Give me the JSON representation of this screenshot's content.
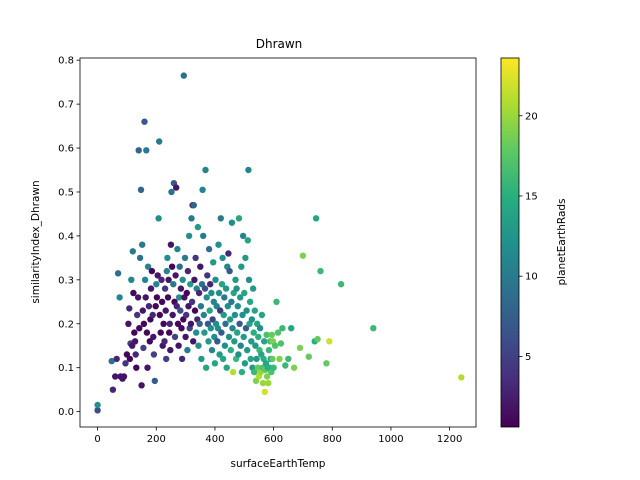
{
  "chart_data": {
    "type": "scatter",
    "title": "Dhrawn",
    "xlabel": "surfaceEarthTemp",
    "ylabel": "similarityIndex_Dhrawn",
    "xlim": [
      -60,
      1290
    ],
    "ylim": [
      -0.035,
      0.805
    ],
    "xticks": [
      "0",
      "200",
      "400",
      "600",
      "800",
      "1000",
      "1200"
    ],
    "yticks": [
      "0.0",
      "0.1",
      "0.2",
      "0.3",
      "0.4",
      "0.5",
      "0.6",
      "0.7",
      "0.8"
    ],
    "colorbar": {
      "label": "planetEarthRads",
      "range": [
        0.6,
        23.6
      ],
      "ticks": [
        "5",
        "10",
        "15",
        "20"
      ],
      "colormap": "viridis"
    },
    "points": [
      [
        0,
        0.003,
        6
      ],
      [
        0,
        0.015,
        12
      ],
      [
        48,
        0.115,
        9
      ],
      [
        52,
        0.05,
        3
      ],
      [
        60,
        0.08,
        2
      ],
      [
        65,
        0.12,
        3
      ],
      [
        70,
        0.315,
        9
      ],
      [
        75,
        0.26,
        11
      ],
      [
        78,
        0.08,
        2
      ],
      [
        85,
        0.075,
        2
      ],
      [
        90,
        0.08,
        2
      ],
      [
        95,
        0.11,
        4
      ],
      [
        100,
        0.13,
        1
      ],
      [
        105,
        0.2,
        2
      ],
      [
        108,
        0.235,
        3
      ],
      [
        110,
        0.12,
        1
      ],
      [
        112,
        0.155,
        5
      ],
      [
        115,
        0.3,
        11
      ],
      [
        118,
        0.15,
        2
      ],
      [
        120,
        0.365,
        10
      ],
      [
        122,
        0.27,
        1
      ],
      [
        125,
        0.18,
        1
      ],
      [
        128,
        0.16,
        2
      ],
      [
        130,
        0.13,
        3
      ],
      [
        132,
        0.1,
        1
      ],
      [
        135,
        0.22,
        4
      ],
      [
        138,
        0.26,
        2
      ],
      [
        140,
        0.595,
        8
      ],
      [
        142,
        0.19,
        1
      ],
      [
        145,
        0.35,
        9
      ],
      [
        148,
        0.505,
        8
      ],
      [
        150,
        0.06,
        2
      ],
      [
        152,
        0.38,
        10
      ],
      [
        154,
        0.23,
        2
      ],
      [
        156,
        0.145,
        5
      ],
      [
        158,
        0.2,
        1
      ],
      [
        160,
        0.66,
        7
      ],
      [
        162,
        0.3,
        11
      ],
      [
        164,
        0.26,
        2
      ],
      [
        166,
        0.595,
        10
      ],
      [
        168,
        0.18,
        1
      ],
      [
        170,
        0.1,
        2
      ],
      [
        172,
        0.33,
        11
      ],
      [
        175,
        0.24,
        3
      ],
      [
        178,
        0.16,
        1
      ],
      [
        180,
        0.21,
        1
      ],
      [
        182,
        0.28,
        2
      ],
      [
        185,
        0.32,
        1
      ],
      [
        188,
        0.22,
        3
      ],
      [
        190,
        0.17,
        2
      ],
      [
        192,
        0.13,
        5
      ],
      [
        195,
        0.07,
        7
      ],
      [
        198,
        0.24,
        1
      ],
      [
        200,
        0.29,
        11
      ],
      [
        202,
        0.26,
        1
      ],
      [
        205,
        0.31,
        2
      ],
      [
        208,
        0.44,
        12
      ],
      [
        210,
        0.615,
        10
      ],
      [
        212,
        0.22,
        1
      ],
      [
        215,
        0.18,
        1
      ],
      [
        218,
        0.3,
        3
      ],
      [
        220,
        0.25,
        1
      ],
      [
        222,
        0.15,
        2
      ],
      [
        225,
        0.2,
        1
      ],
      [
        228,
        0.16,
        3
      ],
      [
        230,
        0.28,
        4
      ],
      [
        232,
        0.23,
        2
      ],
      [
        234,
        0.12,
        5
      ],
      [
        236,
        0.32,
        11
      ],
      [
        238,
        0.35,
        12
      ],
      [
        240,
        0.26,
        1
      ],
      [
        242,
        0.3,
        2
      ],
      [
        244,
        0.18,
        1
      ],
      [
        246,
        0.2,
        3
      ],
      [
        248,
        0.14,
        2
      ],
      [
        250,
        0.38,
        2
      ],
      [
        252,
        0.5,
        9
      ],
      [
        254,
        0.33,
        1
      ],
      [
        256,
        0.22,
        2
      ],
      [
        258,
        0.29,
        10
      ],
      [
        260,
        0.52,
        7
      ],
      [
        262,
        0.25,
        1
      ],
      [
        264,
        0.17,
        5
      ],
      [
        266,
        0.31,
        2
      ],
      [
        268,
        0.51,
        2
      ],
      [
        270,
        0.24,
        3
      ],
      [
        272,
        0.37,
        11
      ],
      [
        274,
        0.2,
        1
      ],
      [
        276,
        0.15,
        2
      ],
      [
        278,
        0.26,
        12
      ],
      [
        280,
        0.33,
        9
      ],
      [
        282,
        0.23,
        6
      ],
      [
        284,
        0.28,
        2
      ],
      [
        286,
        0.19,
        1
      ],
      [
        288,
        0.12,
        3
      ],
      [
        290,
        0.3,
        12
      ],
      [
        292,
        0.21,
        1
      ],
      [
        294,
        0.765,
        9
      ],
      [
        296,
        0.26,
        2
      ],
      [
        298,
        0.35,
        10
      ],
      [
        300,
        0.17,
        2
      ],
      [
        302,
        0.22,
        4
      ],
      [
        304,
        0.27,
        1
      ],
      [
        306,
        0.14,
        10
      ],
      [
        308,
        0.32,
        3
      ],
      [
        310,
        0.24,
        2
      ],
      [
        312,
        0.4,
        12
      ],
      [
        314,
        0.19,
        5
      ],
      [
        316,
        0.29,
        13
      ],
      [
        318,
        0.2,
        2
      ],
      [
        320,
        0.44,
        10
      ],
      [
        322,
        0.25,
        4
      ],
      [
        324,
        0.47,
        3
      ],
      [
        326,
        0.16,
        2
      ],
      [
        328,
        0.47,
        8
      ],
      [
        330,
        0.3,
        2
      ],
      [
        332,
        0.23,
        1
      ],
      [
        334,
        0.35,
        4
      ],
      [
        336,
        0.18,
        12
      ],
      [
        338,
        0.28,
        11
      ],
      [
        340,
        0.21,
        3
      ],
      [
        342,
        0.42,
        13
      ],
      [
        344,
        0.15,
        12
      ],
      [
        346,
        0.27,
        3
      ],
      [
        348,
        0.2,
        8
      ],
      [
        350,
        0.33,
        2
      ],
      [
        352,
        0.24,
        10
      ],
      [
        354,
        0.12,
        13
      ],
      [
        356,
        0.29,
        9
      ],
      [
        358,
        0.505,
        11
      ],
      [
        360,
        0.4,
        10
      ],
      [
        362,
        0.22,
        11
      ],
      [
        364,
        0.18,
        13
      ],
      [
        366,
        0.28,
        6
      ],
      [
        368,
        0.55,
        11
      ],
      [
        370,
        0.1,
        14
      ],
      [
        372,
        0.26,
        12
      ],
      [
        374,
        0.31,
        4
      ],
      [
        376,
        0.2,
        7
      ],
      [
        378,
        0.16,
        13
      ],
      [
        380,
        0.37,
        9
      ],
      [
        382,
        0.23,
        14
      ],
      [
        384,
        0.29,
        3
      ],
      [
        386,
        0.19,
        12
      ],
      [
        388,
        0.27,
        12
      ],
      [
        390,
        0.14,
        11
      ],
      [
        392,
        0.21,
        5
      ],
      [
        394,
        0.34,
        13
      ],
      [
        396,
        0.25,
        11
      ],
      [
        398,
        0.17,
        12
      ],
      [
        400,
        0.11,
        14
      ],
      [
        402,
        0.3,
        12
      ],
      [
        404,
        0.2,
        12
      ],
      [
        406,
        0.24,
        11
      ],
      [
        408,
        0.16,
        7
      ],
      [
        410,
        0.19,
        12
      ],
      [
        412,
        0.38,
        12
      ],
      [
        414,
        0.27,
        12
      ],
      [
        416,
        0.13,
        13
      ],
      [
        418,
        0.23,
        4
      ],
      [
        420,
        0.44,
        10
      ],
      [
        422,
        0.18,
        7
      ],
      [
        424,
        0.29,
        14
      ],
      [
        426,
        0.35,
        12
      ],
      [
        428,
        0.12,
        14
      ],
      [
        430,
        0.22,
        13
      ],
      [
        432,
        0.26,
        10
      ],
      [
        434,
        0.15,
        12
      ],
      [
        436,
        0.2,
        9
      ],
      [
        438,
        0.28,
        13
      ],
      [
        440,
        0.1,
        14
      ],
      [
        442,
        0.33,
        11
      ],
      [
        444,
        0.24,
        12
      ],
      [
        446,
        0.36,
        3
      ],
      [
        448,
        0.17,
        12
      ],
      [
        450,
        0.32,
        7
      ],
      [
        452,
        0.21,
        13
      ],
      [
        454,
        0.14,
        15
      ],
      [
        456,
        0.25,
        10
      ],
      [
        458,
        0.43,
        12
      ],
      [
        460,
        0.19,
        11
      ],
      [
        462,
        0.09,
        21
      ],
      [
        464,
        0.27,
        14
      ],
      [
        466,
        0.16,
        13
      ],
      [
        468,
        0.22,
        12
      ],
      [
        470,
        0.3,
        13
      ],
      [
        472,
        0.12,
        16
      ],
      [
        474,
        0.28,
        12
      ],
      [
        476,
        0.18,
        14
      ],
      [
        478,
        0.24,
        12
      ],
      [
        480,
        0.13,
        12
      ],
      [
        482,
        0.44,
        14
      ],
      [
        484,
        0.2,
        7
      ],
      [
        486,
        0.26,
        13
      ],
      [
        488,
        0.15,
        11
      ],
      [
        490,
        0.33,
        13
      ],
      [
        492,
        0.09,
        15
      ],
      [
        494,
        0.22,
        12
      ],
      [
        496,
        0.4,
        11
      ],
      [
        498,
        0.17,
        13
      ],
      [
        500,
        0.27,
        14
      ],
      [
        502,
        0.11,
        13
      ],
      [
        504,
        0.35,
        13
      ],
      [
        506,
        0.19,
        7
      ],
      [
        508,
        0.23,
        12
      ],
      [
        510,
        0.14,
        13
      ],
      [
        512,
        0.39,
        14
      ],
      [
        514,
        0.55,
        11
      ],
      [
        516,
        0.3,
        12
      ],
      [
        518,
        0.2,
        14
      ],
      [
        520,
        0.25,
        14
      ],
      [
        522,
        0.12,
        14
      ],
      [
        524,
        0.16,
        13
      ],
      [
        526,
        0.21,
        12
      ],
      [
        528,
        0.1,
        13
      ],
      [
        530,
        0.28,
        13
      ],
      [
        532,
        0.18,
        15
      ],
      [
        534,
        0.09,
        16
      ],
      [
        536,
        0.23,
        14
      ],
      [
        538,
        0.15,
        13
      ],
      [
        540,
        0.07,
        19
      ],
      [
        542,
        0.12,
        13
      ],
      [
        544,
        0.2,
        14
      ],
      [
        546,
        0.1,
        18
      ],
      [
        548,
        0.17,
        15
      ],
      [
        550,
        0.08,
        21
      ],
      [
        552,
        0.14,
        16
      ],
      [
        554,
        0.19,
        12
      ],
      [
        556,
        0.09,
        20
      ],
      [
        558,
        0.13,
        14
      ],
      [
        560,
        0.22,
        14
      ],
      [
        562,
        0.1,
        17
      ],
      [
        564,
        0.065,
        20
      ],
      [
        566,
        0.12,
        15
      ],
      [
        568,
        0.16,
        14
      ],
      [
        570,
        0.045,
        22
      ],
      [
        572,
        0.095,
        18
      ],
      [
        574,
        0.11,
        14
      ],
      [
        576,
        0.175,
        17
      ],
      [
        578,
        0.08,
        19
      ],
      [
        580,
        0.1,
        15
      ],
      [
        582,
        0.065,
        20
      ],
      [
        584,
        0.14,
        16
      ],
      [
        586,
        0.1,
        15
      ],
      [
        588,
        0.16,
        17
      ],
      [
        590,
        0.12,
        13
      ],
      [
        592,
        0.09,
        17
      ],
      [
        594,
        0.175,
        18
      ],
      [
        596,
        0.12,
        18
      ],
      [
        598,
        0.16,
        19
      ],
      [
        600,
        0.1,
        16
      ],
      [
        605,
        0.15,
        17
      ],
      [
        610,
        0.25,
        16
      ],
      [
        615,
        0.18,
        17
      ],
      [
        620,
        0.12,
        19
      ],
      [
        625,
        0.155,
        17
      ],
      [
        630,
        0.19,
        16
      ],
      [
        640,
        0.105,
        16
      ],
      [
        650,
        0.12,
        16
      ],
      [
        660,
        0.19,
        14
      ],
      [
        670,
        0.1,
        19
      ],
      [
        690,
        0.145,
        19
      ],
      [
        700,
        0.355,
        19
      ],
      [
        720,
        0.125,
        18
      ],
      [
        740,
        0.16,
        15
      ],
      [
        745,
        0.44,
        14
      ],
      [
        750,
        0.165,
        18
      ],
      [
        760,
        0.32,
        16
      ],
      [
        780,
        0.11,
        18
      ],
      [
        790,
        0.16,
        22
      ],
      [
        830,
        0.29,
        16
      ],
      [
        940,
        0.19,
        16
      ],
      [
        1240,
        0.078,
        21
      ]
    ]
  }
}
